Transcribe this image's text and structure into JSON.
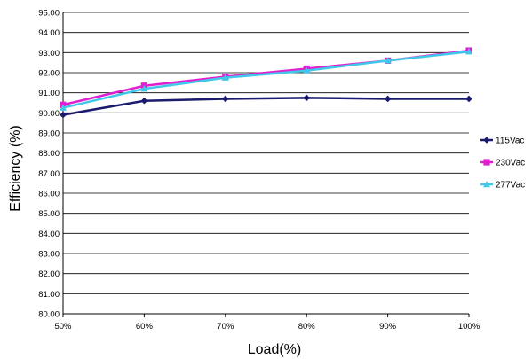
{
  "chart_data": {
    "type": "line",
    "xlabel": "Load(%)",
    "ylabel": "Efficiency (%)",
    "categories": [
      "50%",
      "60%",
      "70%",
      "80%",
      "90%",
      "100%"
    ],
    "y_ticks": [
      "80.00",
      "81.00",
      "82.00",
      "83.00",
      "84.00",
      "85.00",
      "86.00",
      "87.00",
      "88.00",
      "89.00",
      "90.00",
      "91.00",
      "92.00",
      "93.00",
      "94.00",
      "95.00"
    ],
    "ylim": [
      80,
      95
    ],
    "grid": "horizontal",
    "legend_position": "right",
    "series": [
      {
        "name": "115Vac",
        "color": "#1a1a6e",
        "marker": "diamond",
        "values": [
          89.9,
          90.6,
          90.7,
          90.75,
          90.7,
          90.7
        ]
      },
      {
        "name": "230Vac",
        "color": "#e020d0",
        "marker": "square",
        "values": [
          90.4,
          91.35,
          91.8,
          92.2,
          92.6,
          93.1
        ]
      },
      {
        "name": "277Vac",
        "color": "#40c8e8",
        "marker": "triangle",
        "values": [
          90.25,
          91.2,
          91.75,
          92.1,
          92.6,
          93.05
        ]
      }
    ]
  }
}
